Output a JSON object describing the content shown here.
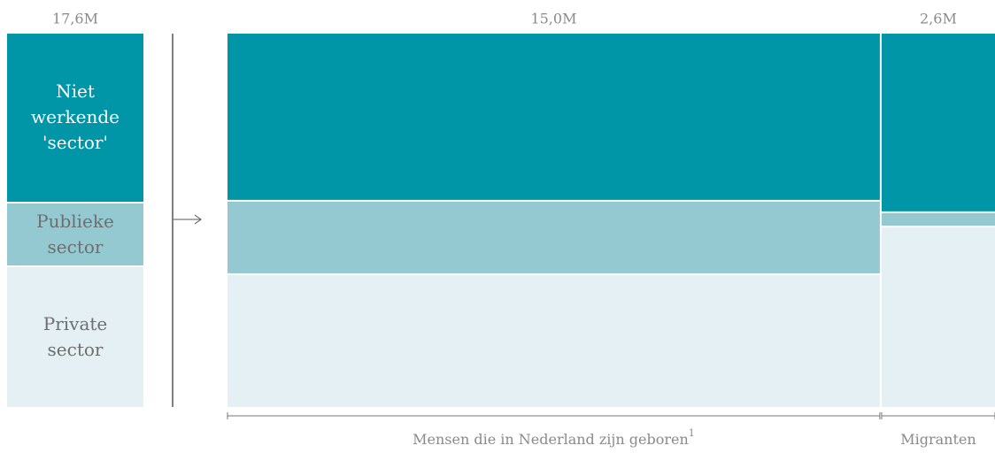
{
  "chart_data": {
    "type": "mekko",
    "segments": [
      {
        "name": "Niet werkende 'sector'",
        "color": "#0096a8",
        "text_color": "#ffffff"
      },
      {
        "name": "Publieke sector",
        "color": "#95c9d2",
        "text_color": "#6e6e6e"
      },
      {
        "name": "Private sector",
        "color": "#e4f0f3",
        "text_color": "#6e6e6e"
      }
    ],
    "total": 17.6,
    "total_label": "17,6M",
    "total_values": [
      8.0,
      3.0,
      6.6
    ],
    "columns": [
      {
        "name": "Mensen die in Nederland zijn geboren",
        "footnote": "1",
        "value": 15.0,
        "value_label": "15,0M",
        "values": [
          6.75,
          2.95,
          5.3
        ]
      },
      {
        "name": "Migranten",
        "value": 2.6,
        "value_label": "2,6M",
        "values": [
          1.25,
          0.1,
          1.25
        ]
      }
    ]
  }
}
